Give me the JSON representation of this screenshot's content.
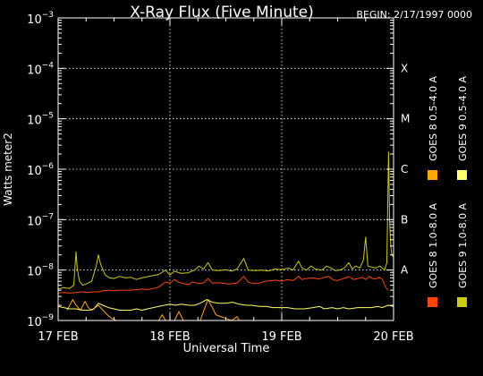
{
  "chart_data": {
    "type": "line",
    "title": "X-Ray Flux (Five Minute)",
    "begin_label": "BEGIN: 2/17/1997 0000",
    "xlabel": "Universal Time",
    "ylabel": "Watts meter2",
    "y_scale": "log",
    "ylim": [
      1e-09,
      0.001
    ],
    "y_ticks": [
      {
        "base": "10",
        "exp": "-9"
      },
      {
        "base": "10",
        "exp": "-8"
      },
      {
        "base": "10",
        "exp": "-7"
      },
      {
        "base": "10",
        "exp": "-6"
      },
      {
        "base": "10",
        "exp": "-5"
      },
      {
        "base": "10",
        "exp": "-4"
      },
      {
        "base": "10",
        "exp": "-3"
      }
    ],
    "x_days": [
      "17 FEB",
      "18 FEB",
      "19 FEB",
      "20 FEB"
    ],
    "x_unit": "days since 17 FEB 1997 00:00 UT",
    "xlim": [
      0,
      3
    ],
    "flare_classes": [
      {
        "label": "A",
        "value": 1e-08
      },
      {
        "label": "B",
        "value": 1e-07
      },
      {
        "label": "C",
        "value": 1e-06
      },
      {
        "label": "M",
        "value": 1e-05
      },
      {
        "label": "X",
        "value": 0.0001
      }
    ],
    "grid": true,
    "legend_placement": "right",
    "series": [
      {
        "name": "GOES 8 1.0-8.0 A",
        "color": "#ff4500",
        "points": [
          [
            0.0,
            3.5e-09
          ],
          [
            0.05,
            3.6e-09
          ],
          [
            0.1,
            3.5e-09
          ],
          [
            0.16,
            3.6e-09
          ],
          [
            0.21,
            3.7e-09
          ],
          [
            0.26,
            3.6e-09
          ],
          [
            0.31,
            3.7e-09
          ],
          [
            0.36,
            3.7e-09
          ],
          [
            0.4,
            3.9e-09
          ],
          [
            0.45,
            4e-09
          ],
          [
            0.5,
            3.9e-09
          ],
          [
            0.55,
            4e-09
          ],
          [
            0.6,
            4e-09
          ],
          [
            0.65,
            4e-09
          ],
          [
            0.7,
            4.1e-09
          ],
          [
            0.75,
            4.2e-09
          ],
          [
            0.8,
            4.1e-09
          ],
          [
            0.85,
            4.3e-09
          ],
          [
            0.9,
            4.6e-09
          ],
          [
            0.93,
            5.2e-09
          ],
          [
            0.96,
            5.8e-09
          ],
          [
            1.0,
            5.5e-09
          ],
          [
            1.04,
            6.5e-09
          ],
          [
            1.07,
            5.8e-09
          ],
          [
            1.12,
            5.4e-09
          ],
          [
            1.17,
            5.2e-09
          ],
          [
            1.2,
            5.8e-09
          ],
          [
            1.26,
            5.4e-09
          ],
          [
            1.3,
            5.6e-09
          ],
          [
            1.34,
            6.8e-09
          ],
          [
            1.38,
            5.5e-09
          ],
          [
            1.45,
            5.6e-09
          ],
          [
            1.52,
            5.3e-09
          ],
          [
            1.6,
            5.5e-09
          ],
          [
            1.66,
            7.5e-09
          ],
          [
            1.7,
            5.8e-09
          ],
          [
            1.74,
            5.4e-09
          ],
          [
            1.8,
            5.5e-09
          ],
          [
            1.85,
            6e-09
          ],
          [
            1.9,
            6.2e-09
          ],
          [
            1.95,
            6.3e-09
          ],
          [
            2.0,
            6e-09
          ],
          [
            2.05,
            6.5e-09
          ],
          [
            2.1,
            6.2e-09
          ],
          [
            2.15,
            7.5e-09
          ],
          [
            2.18,
            6.5e-09
          ],
          [
            2.22,
            6.8e-09
          ],
          [
            2.28,
            7e-09
          ],
          [
            2.33,
            6.6e-09
          ],
          [
            2.38,
            7.2e-09
          ],
          [
            2.42,
            7.5e-09
          ],
          [
            2.46,
            6.4e-09
          ],
          [
            2.5,
            6.2e-09
          ],
          [
            2.55,
            6.8e-09
          ],
          [
            2.6,
            7.4e-09
          ],
          [
            2.64,
            6.5e-09
          ],
          [
            2.68,
            6.8e-09
          ],
          [
            2.72,
            7.2e-09
          ],
          [
            2.75,
            6.5e-09
          ],
          [
            2.78,
            7.5e-09
          ],
          [
            2.81,
            6.8e-09
          ],
          [
            2.84,
            6.6e-09
          ],
          [
            2.87,
            7.2e-09
          ],
          [
            2.9,
            6.5e-09
          ],
          [
            2.93,
            4.5e-09
          ],
          [
            2.95,
            4e-09
          ]
        ]
      },
      {
        "name": "GOES 8 0.5-4.0 A",
        "color": "#ffa500",
        "points": [
          [
            0.08,
            1.6e-09
          ],
          [
            0.13,
            2.6e-09
          ],
          [
            0.16,
            2e-09
          ],
          [
            0.2,
            1.6e-09
          ],
          [
            0.24,
            2.4e-09
          ],
          [
            0.27,
            1.8e-09
          ],
          [
            0.3,
            1.6e-09
          ],
          [
            0.36,
            2e-09
          ],
          [
            0.4,
            1.6e-09
          ],
          [
            0.44,
            1.3e-09
          ],
          [
            0.48,
            1.1e-09
          ],
          [
            0.52,
            1e-09
          ],
          [
            0.55,
            1e-09
          ],
          [
            0.9,
            1e-09
          ],
          [
            0.93,
            1.3e-09
          ],
          [
            0.96,
            1e-09
          ],
          [
            1.04,
            1e-09
          ],
          [
            1.08,
            1.5e-09
          ],
          [
            1.12,
            1e-09
          ],
          [
            1.27,
            1e-09
          ],
          [
            1.3,
            1.5e-09
          ],
          [
            1.34,
            2.6e-09
          ],
          [
            1.38,
            1.8e-09
          ],
          [
            1.41,
            1.3e-09
          ],
          [
            1.45,
            1.2e-09
          ],
          [
            1.5,
            1.1e-09
          ],
          [
            1.55,
            1e-09
          ],
          [
            1.6,
            1.2e-09
          ],
          [
            1.62,
            1e-09
          ]
        ]
      },
      {
        "name": "GOES 9 0.5-4.0 A",
        "color": "#ffff66",
        "points": [
          [
            0.0,
            1.9e-09
          ],
          [
            0.05,
            1.8e-09
          ],
          [
            0.1,
            1.7e-09
          ],
          [
            0.16,
            1.7e-09
          ],
          [
            0.22,
            1.6e-09
          ],
          [
            0.28,
            1.6e-09
          ],
          [
            0.32,
            1.7e-09
          ],
          [
            0.36,
            2.2e-09
          ],
          [
            0.4,
            2e-09
          ],
          [
            0.45,
            1.8e-09
          ],
          [
            0.5,
            1.7e-09
          ],
          [
            0.55,
            1.6e-09
          ],
          [
            0.6,
            1.6e-09
          ],
          [
            0.65,
            1.6e-09
          ],
          [
            0.7,
            1.7e-09
          ],
          [
            0.75,
            1.6e-09
          ],
          [
            0.8,
            1.7e-09
          ],
          [
            0.85,
            1.8e-09
          ],
          [
            0.9,
            1.9e-09
          ],
          [
            0.95,
            2e-09
          ],
          [
            1.0,
            2.1e-09
          ],
          [
            1.05,
            2e-09
          ],
          [
            1.1,
            2.1e-09
          ],
          [
            1.17,
            2e-09
          ],
          [
            1.22,
            2e-09
          ],
          [
            1.27,
            2.2e-09
          ],
          [
            1.33,
            2.6e-09
          ],
          [
            1.38,
            2.3e-09
          ],
          [
            1.44,
            2.2e-09
          ],
          [
            1.5,
            2.2e-09
          ],
          [
            1.56,
            2.3e-09
          ],
          [
            1.62,
            2.1e-09
          ],
          [
            1.68,
            2e-09
          ],
          [
            1.73,
            2e-09
          ],
          [
            1.8,
            1.9e-09
          ],
          [
            1.86,
            1.9e-09
          ],
          [
            1.92,
            1.8e-09
          ],
          [
            1.98,
            1.8e-09
          ],
          [
            2.05,
            1.8e-09
          ],
          [
            2.12,
            1.7e-09
          ],
          [
            2.2,
            1.7e-09
          ],
          [
            2.28,
            1.8e-09
          ],
          [
            2.34,
            1.9e-09
          ],
          [
            2.38,
            1.7e-09
          ],
          [
            2.45,
            1.8e-09
          ],
          [
            2.5,
            1.7e-09
          ],
          [
            2.55,
            1.8e-09
          ],
          [
            2.6,
            1.7e-09
          ],
          [
            2.68,
            1.8e-09
          ],
          [
            2.75,
            1.8e-09
          ],
          [
            2.8,
            1.8e-09
          ],
          [
            2.86,
            1.9e-09
          ],
          [
            2.9,
            1.8e-09
          ],
          [
            2.95,
            2e-09
          ],
          [
            3.0,
            1.9e-09
          ]
        ]
      },
      {
        "name": "GOES 9 1.0-8.0 A",
        "color": "#cccc00",
        "points": [
          [
            0.0,
            4.2e-09
          ],
          [
            0.05,
            4.5e-09
          ],
          [
            0.1,
            4.3e-09
          ],
          [
            0.14,
            5e-09
          ],
          [
            0.16,
            2.3e-08
          ],
          [
            0.17,
            1.1e-08
          ],
          [
            0.19,
            6e-09
          ],
          [
            0.22,
            5e-09
          ],
          [
            0.26,
            5.4e-09
          ],
          [
            0.3,
            6e-09
          ],
          [
            0.34,
            1.2e-08
          ],
          [
            0.36,
            2e-08
          ],
          [
            0.38,
            1.3e-08
          ],
          [
            0.42,
            8e-09
          ],
          [
            0.46,
            7e-09
          ],
          [
            0.5,
            6.8e-09
          ],
          [
            0.55,
            7.5e-09
          ],
          [
            0.6,
            7e-09
          ],
          [
            0.65,
            7.2e-09
          ],
          [
            0.7,
            6.5e-09
          ],
          [
            0.75,
            7e-09
          ],
          [
            0.8,
            7.4e-09
          ],
          [
            0.85,
            7.8e-09
          ],
          [
            0.9,
            8.2e-09
          ],
          [
            0.96,
            1e-08
          ],
          [
            1.0,
            8e-09
          ],
          [
            1.04,
            9.5e-09
          ],
          [
            1.1,
            8.6e-09
          ],
          [
            1.16,
            8.8e-09
          ],
          [
            1.22,
            1e-08
          ],
          [
            1.26,
            1.2e-08
          ],
          [
            1.3,
            1.05e-08
          ],
          [
            1.34,
            1.4e-08
          ],
          [
            1.38,
            1e-08
          ],
          [
            1.44,
            9.8e-09
          ],
          [
            1.5,
            1.02e-08
          ],
          [
            1.55,
            9.5e-09
          ],
          [
            1.6,
            1.05e-08
          ],
          [
            1.66,
            1.7e-08
          ],
          [
            1.7,
            1e-08
          ],
          [
            1.76,
            9.8e-09
          ],
          [
            1.82,
            1e-08
          ],
          [
            1.88,
            9.6e-09
          ],
          [
            1.94,
            1.05e-08
          ],
          [
            2.0,
            1.02e-08
          ],
          [
            2.06,
            1.1e-08
          ],
          [
            2.1,
            1e-08
          ],
          [
            2.15,
            1.5e-08
          ],
          [
            2.18,
            1.1e-08
          ],
          [
            2.22,
            1e-08
          ],
          [
            2.26,
            1.2e-08
          ],
          [
            2.3,
            1.05e-08
          ],
          [
            2.36,
            1e-08
          ],
          [
            2.4,
            1.2e-08
          ],
          [
            2.44,
            1.1e-08
          ],
          [
            2.48,
            9.8e-09
          ],
          [
            2.52,
            1e-08
          ],
          [
            2.56,
            1.1e-08
          ],
          [
            2.6,
            1.4e-08
          ],
          [
            2.63,
            1.05e-08
          ],
          [
            2.66,
            1.2e-08
          ],
          [
            2.7,
            1.1e-08
          ],
          [
            2.73,
            1.6e-08
          ],
          [
            2.75,
            4.5e-08
          ],
          [
            2.77,
            1.2e-08
          ],
          [
            2.8,
            1.15e-08
          ],
          [
            2.84,
            1.1e-08
          ],
          [
            2.88,
            1.2e-08
          ],
          [
            2.92,
            1e-08
          ],
          [
            2.94,
            1.4e-08
          ],
          [
            2.955,
            2.2e-06
          ],
          [
            2.965,
            9e-08
          ],
          [
            2.975,
            3e-08
          ],
          [
            2.985,
            2e-08
          ],
          [
            3.0,
            1.8e-08
          ]
        ]
      }
    ]
  }
}
